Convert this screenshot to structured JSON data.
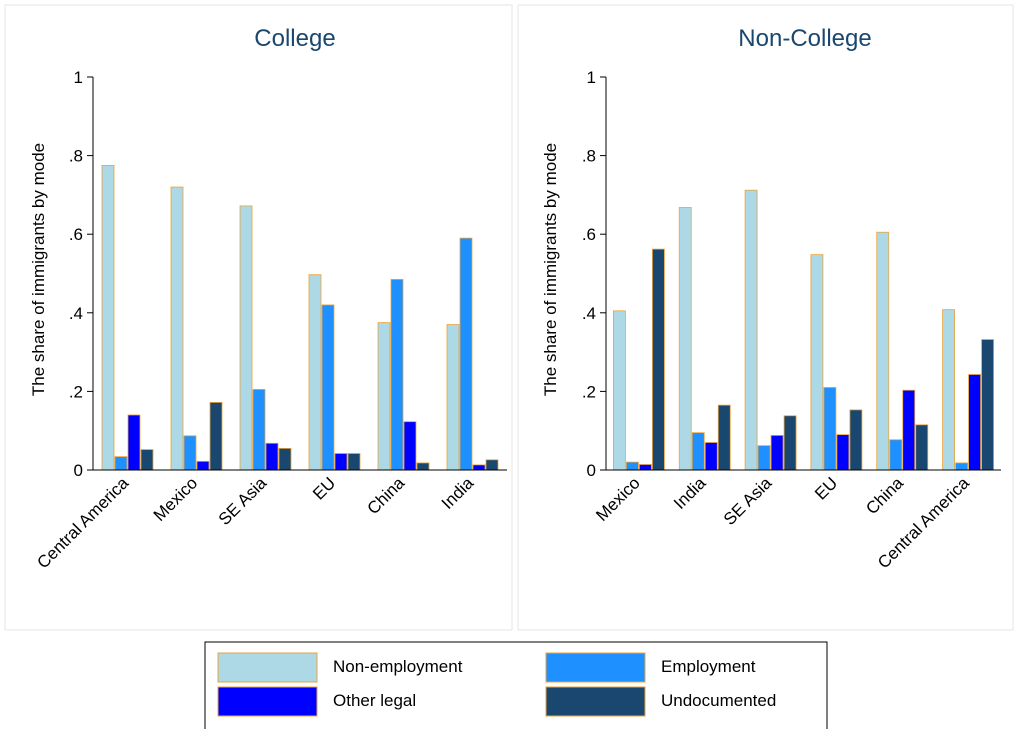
{
  "chart_data": [
    {
      "type": "bar",
      "title": "College",
      "ylabel": "The share of immigrants by mode",
      "ylim": [
        0,
        1
      ],
      "yticks": [
        0,
        0.2,
        0.4,
        0.6,
        0.8,
        1
      ],
      "ytick_labels": [
        "0",
        ".2",
        ".4",
        ".6",
        ".8",
        "1"
      ],
      "categories": [
        "Central America",
        "Mexico",
        "SE Asia",
        "EU",
        "China",
        "India"
      ],
      "series": [
        {
          "name": "Non-employment",
          "values": [
            0.775,
            0.72,
            0.672,
            0.497,
            0.375,
            0.37
          ]
        },
        {
          "name": "Employment",
          "values": [
            0.034,
            0.087,
            0.205,
            0.42,
            0.485,
            0.59
          ]
        },
        {
          "name": "Other legal",
          "values": [
            0.14,
            0.022,
            0.068,
            0.042,
            0.123,
            0.013
          ]
        },
        {
          "name": "Undocumented",
          "values": [
            0.052,
            0.172,
            0.055,
            0.042,
            0.018,
            0.026
          ]
        }
      ],
      "grid": false
    },
    {
      "type": "bar",
      "title": "Non-College",
      "ylabel": "The share of immigrants by mode",
      "ylim": [
        0,
        1
      ],
      "yticks": [
        0,
        0.2,
        0.4,
        0.6,
        0.8,
        1
      ],
      "ytick_labels": [
        "0",
        ".2",
        ".4",
        ".6",
        ".8",
        "1"
      ],
      "categories": [
        "Mexico",
        "India",
        "SE Asia",
        "EU",
        "China",
        "Central America"
      ],
      "series": [
        {
          "name": "Non-employment",
          "values": [
            0.405,
            0.668,
            0.712,
            0.548,
            0.605,
            0.408
          ]
        },
        {
          "name": "Employment",
          "values": [
            0.02,
            0.095,
            0.062,
            0.21,
            0.077,
            0.018
          ]
        },
        {
          "name": "Other legal",
          "values": [
            0.014,
            0.07,
            0.088,
            0.09,
            0.203,
            0.243
          ]
        },
        {
          "name": "Undocumented",
          "values": [
            0.562,
            0.165,
            0.138,
            0.153,
            0.115,
            0.332
          ]
        }
      ],
      "grid": false
    }
  ],
  "legend": {
    "placement": "bottom",
    "items": [
      {
        "label": "Non-employment",
        "color": "#add8e6"
      },
      {
        "label": "Employment",
        "color": "#1e90ff"
      },
      {
        "label": "Other legal",
        "color": "#0000ff"
      },
      {
        "label": "Undocumented",
        "color": "#1a476f"
      }
    ]
  },
  "colors": {
    "bar_outline": "#e8a33c",
    "axis": "#000000",
    "title": "#1a476f",
    "panel_border": "#e6e6e6"
  }
}
